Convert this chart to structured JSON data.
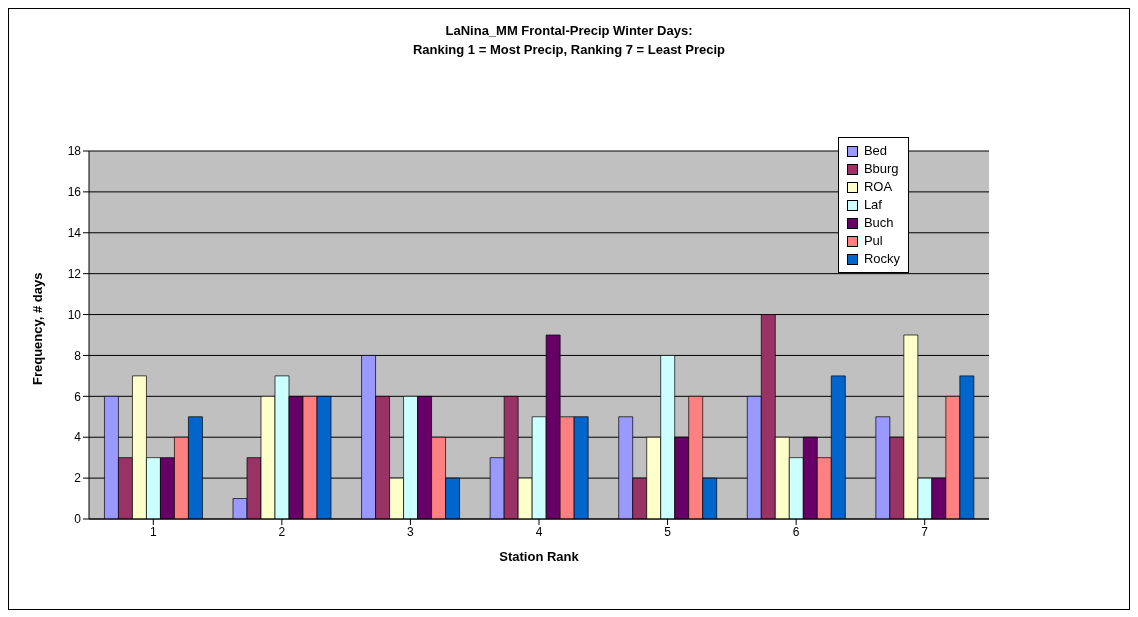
{
  "chart_data": {
    "type": "bar",
    "title": "LaNina_MM Frontal-Precip Winter Days:\nRanking 1 = Most Precip, Ranking 7 = Least Precip",
    "xlabel": "Station Rank",
    "ylabel": "Frequency, # days",
    "categories": [
      "1",
      "2",
      "3",
      "4",
      "5",
      "6",
      "7"
    ],
    "series": [
      {
        "name": "Bed",
        "color": "#9999ff",
        "values": [
          6,
          1,
          8,
          3,
          5,
          6,
          5
        ]
      },
      {
        "name": "Bburg",
        "color": "#993366",
        "values": [
          3,
          3,
          6,
          6,
          2,
          10,
          4
        ]
      },
      {
        "name": "ROA",
        "color": "#ffffcc",
        "values": [
          7,
          6,
          2,
          2,
          4,
          4,
          9
        ]
      },
      {
        "name": "Laf",
        "color": "#ccffff",
        "values": [
          3,
          7,
          6,
          5,
          8,
          3,
          2
        ]
      },
      {
        "name": "Buch",
        "color": "#660066",
        "values": [
          3,
          6,
          6,
          9,
          4,
          4,
          2
        ]
      },
      {
        "name": "Pul",
        "color": "#ff8080",
        "values": [
          4,
          6,
          4,
          5,
          6,
          3,
          6
        ]
      },
      {
        "name": "Rocky",
        "color": "#0066cc",
        "values": [
          5,
          6,
          2,
          5,
          2,
          7,
          7
        ]
      }
    ],
    "ylim": [
      0,
      18
    ],
    "yticks": [
      0,
      2,
      4,
      6,
      8,
      10,
      12,
      14,
      16,
      18
    ],
    "grid": "y",
    "legend": "top right"
  }
}
